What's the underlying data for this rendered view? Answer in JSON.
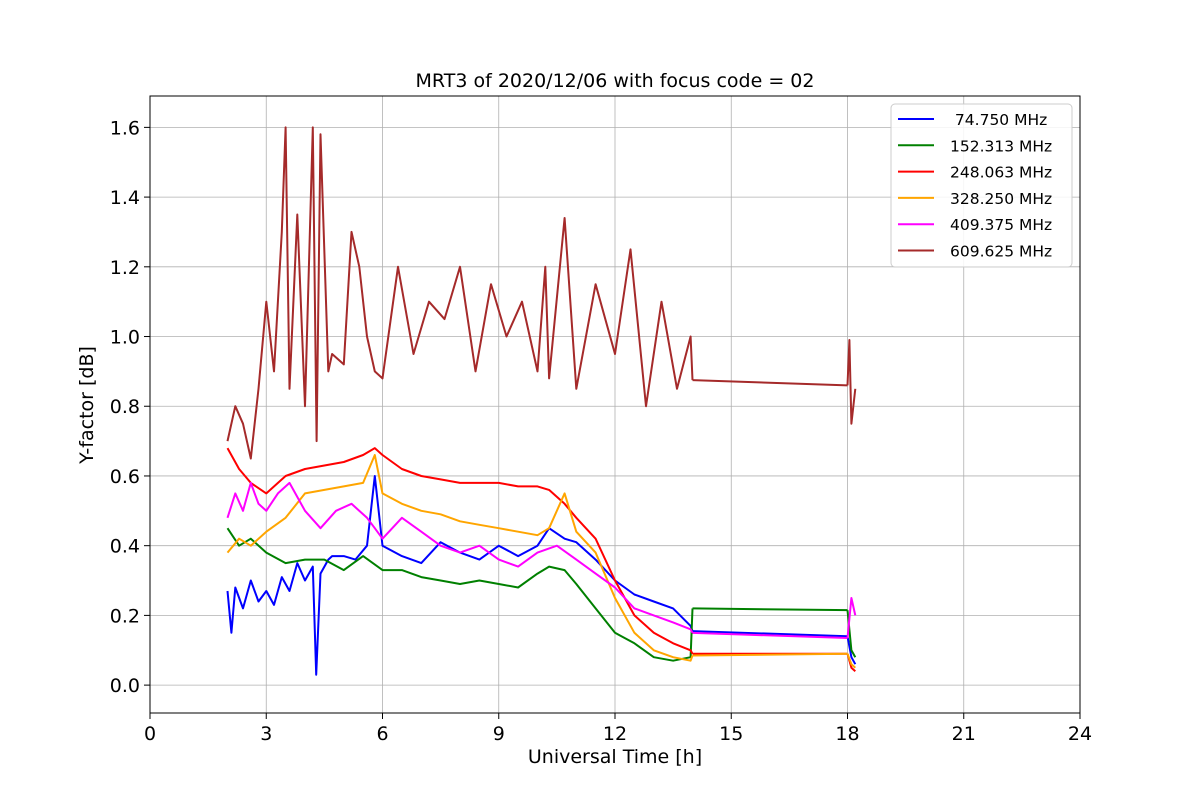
{
  "chart_data": {
    "type": "line",
    "title": "MRT3 of 2020/12/06 with focus code = 02",
    "xlabel": "Universal Time [h]",
    "ylabel": "Y-factor [dB]",
    "xlim": [
      0,
      24
    ],
    "ylim": [
      -0.08,
      1.69
    ],
    "xticks": [
      0,
      3,
      6,
      9,
      12,
      15,
      18,
      21,
      24
    ],
    "xtick_labels": [
      "0",
      "3",
      "6",
      "9",
      "12",
      "15",
      "18",
      "21",
      "24"
    ],
    "yticks": [
      0.0,
      0.2,
      0.4,
      0.6,
      0.8,
      1.0,
      1.2,
      1.4,
      1.6
    ],
    "ytick_labels": [
      "0.0",
      "0.2",
      "0.4",
      "0.6",
      "0.8",
      "1.0",
      "1.2",
      "1.4",
      "1.6"
    ],
    "grid": true,
    "legend_position": "top-right",
    "series": [
      {
        "name": " 74.750 MHz",
        "color": "#0000ff",
        "x": [
          2.0,
          2.1,
          2.2,
          2.4,
          2.6,
          2.8,
          3.0,
          3.2,
          3.4,
          3.6,
          3.8,
          4.0,
          4.2,
          4.29,
          4.4,
          4.6,
          4.7,
          5.0,
          5.3,
          5.6,
          5.8,
          6.0,
          6.5,
          7.0,
          7.5,
          8.0,
          8.5,
          9.0,
          9.5,
          10.0,
          10.3,
          10.7,
          11.0,
          11.5,
          12.0,
          12.5,
          13.0,
          13.5,
          13.95,
          14.0,
          18.0,
          18.1,
          18.2
        ],
        "y": [
          0.27,
          0.15,
          0.28,
          0.22,
          0.3,
          0.24,
          0.27,
          0.23,
          0.31,
          0.27,
          0.35,
          0.3,
          0.34,
          0.03,
          0.32,
          0.36,
          0.37,
          0.37,
          0.36,
          0.4,
          0.6,
          0.4,
          0.37,
          0.35,
          0.41,
          0.38,
          0.36,
          0.4,
          0.37,
          0.4,
          0.45,
          0.42,
          0.41,
          0.36,
          0.3,
          0.26,
          0.24,
          0.22,
          0.17,
          0.155,
          0.14,
          0.08,
          0.06
        ]
      },
      {
        "name": "152.313 MHz",
        "color": "#008000",
        "x": [
          2.0,
          2.3,
          2.6,
          3.0,
          3.5,
          4.0,
          4.5,
          5.0,
          5.5,
          6.0,
          6.5,
          7.0,
          7.5,
          8.0,
          8.5,
          9.0,
          9.5,
          10.0,
          10.3,
          10.7,
          11.0,
          11.5,
          12.0,
          12.5,
          13.0,
          13.5,
          13.95,
          14.0,
          18.0,
          18.1,
          18.2
        ],
        "y": [
          0.45,
          0.4,
          0.42,
          0.38,
          0.35,
          0.36,
          0.36,
          0.33,
          0.37,
          0.33,
          0.33,
          0.31,
          0.3,
          0.29,
          0.3,
          0.29,
          0.28,
          0.32,
          0.34,
          0.33,
          0.29,
          0.22,
          0.15,
          0.12,
          0.08,
          0.07,
          0.08,
          0.22,
          0.215,
          0.1,
          0.08
        ]
      },
      {
        "name": "248.063 MHz",
        "color": "#ff0000",
        "x": [
          2.0,
          2.3,
          2.6,
          3.0,
          3.5,
          4.0,
          4.5,
          5.0,
          5.5,
          5.8,
          6.0,
          6.5,
          7.0,
          7.5,
          8.0,
          8.5,
          9.0,
          9.5,
          10.0,
          10.3,
          10.7,
          11.0,
          11.5,
          12.0,
          12.5,
          13.0,
          13.5,
          13.95,
          14.0,
          18.0,
          18.1,
          18.2
        ],
        "y": [
          0.68,
          0.62,
          0.58,
          0.55,
          0.6,
          0.62,
          0.63,
          0.64,
          0.66,
          0.68,
          0.66,
          0.62,
          0.6,
          0.59,
          0.58,
          0.58,
          0.58,
          0.57,
          0.57,
          0.56,
          0.52,
          0.48,
          0.42,
          0.3,
          0.2,
          0.15,
          0.12,
          0.1,
          0.09,
          0.09,
          0.05,
          0.04
        ]
      },
      {
        "name": "328.250 MHz",
        "color": "#ffa500",
        "x": [
          2.0,
          2.3,
          2.6,
          3.0,
          3.5,
          4.0,
          4.5,
          5.0,
          5.5,
          5.8,
          6.0,
          6.5,
          7.0,
          7.5,
          8.0,
          8.5,
          9.0,
          9.5,
          10.0,
          10.3,
          10.7,
          11.0,
          11.5,
          12.0,
          12.5,
          13.0,
          13.5,
          13.95,
          14.0,
          18.0,
          18.1,
          18.2
        ],
        "y": [
          0.38,
          0.42,
          0.4,
          0.44,
          0.48,
          0.55,
          0.56,
          0.57,
          0.58,
          0.66,
          0.55,
          0.52,
          0.5,
          0.49,
          0.47,
          0.46,
          0.45,
          0.44,
          0.43,
          0.45,
          0.55,
          0.44,
          0.38,
          0.25,
          0.15,
          0.1,
          0.08,
          0.07,
          0.085,
          0.09,
          0.06,
          0.05
        ]
      },
      {
        "name": "409.375 MHz",
        "color": "#ff00ff",
        "x": [
          2.0,
          2.2,
          2.4,
          2.6,
          2.8,
          3.0,
          3.3,
          3.6,
          4.0,
          4.4,
          4.8,
          5.2,
          5.6,
          5.8,
          6.0,
          6.5,
          7.0,
          7.5,
          8.0,
          8.5,
          9.0,
          9.5,
          10.0,
          10.5,
          11.0,
          11.5,
          12.0,
          12.5,
          13.0,
          13.5,
          13.95,
          14.0,
          18.0,
          18.1,
          18.2
        ],
        "y": [
          0.48,
          0.55,
          0.5,
          0.58,
          0.52,
          0.5,
          0.55,
          0.58,
          0.5,
          0.45,
          0.5,
          0.52,
          0.48,
          0.45,
          0.42,
          0.48,
          0.44,
          0.4,
          0.38,
          0.4,
          0.36,
          0.34,
          0.38,
          0.4,
          0.36,
          0.32,
          0.28,
          0.22,
          0.2,
          0.18,
          0.16,
          0.15,
          0.135,
          0.25,
          0.2
        ]
      },
      {
        "name": "609.625 MHz",
        "color": "#a52a2a",
        "x": [
          2.0,
          2.2,
          2.4,
          2.6,
          2.8,
          3.0,
          3.2,
          3.4,
          3.5,
          3.6,
          3.8,
          4.0,
          4.2,
          4.3,
          4.4,
          4.6,
          4.7,
          5.0,
          5.2,
          5.4,
          5.6,
          5.8,
          6.0,
          6.4,
          6.8,
          7.2,
          7.6,
          8.0,
          8.4,
          8.8,
          9.2,
          9.6,
          10.0,
          10.2,
          10.3,
          10.7,
          11.0,
          11.5,
          12.0,
          12.4,
          12.8,
          13.2,
          13.6,
          13.95,
          14.0,
          18.0,
          18.05,
          18.1,
          18.2
        ],
        "y": [
          0.7,
          0.8,
          0.75,
          0.65,
          0.85,
          1.1,
          0.9,
          1.3,
          1.6,
          0.85,
          1.35,
          0.8,
          1.6,
          0.7,
          1.58,
          0.9,
          0.95,
          0.92,
          1.3,
          1.2,
          1.0,
          0.9,
          0.88,
          1.2,
          0.95,
          1.1,
          1.05,
          1.2,
          0.9,
          1.15,
          1.0,
          1.1,
          0.9,
          1.2,
          0.88,
          1.34,
          0.85,
          1.15,
          0.95,
          1.25,
          0.8,
          1.1,
          0.85,
          1.0,
          0.875,
          0.86,
          0.99,
          0.75,
          0.85
        ]
      }
    ]
  }
}
